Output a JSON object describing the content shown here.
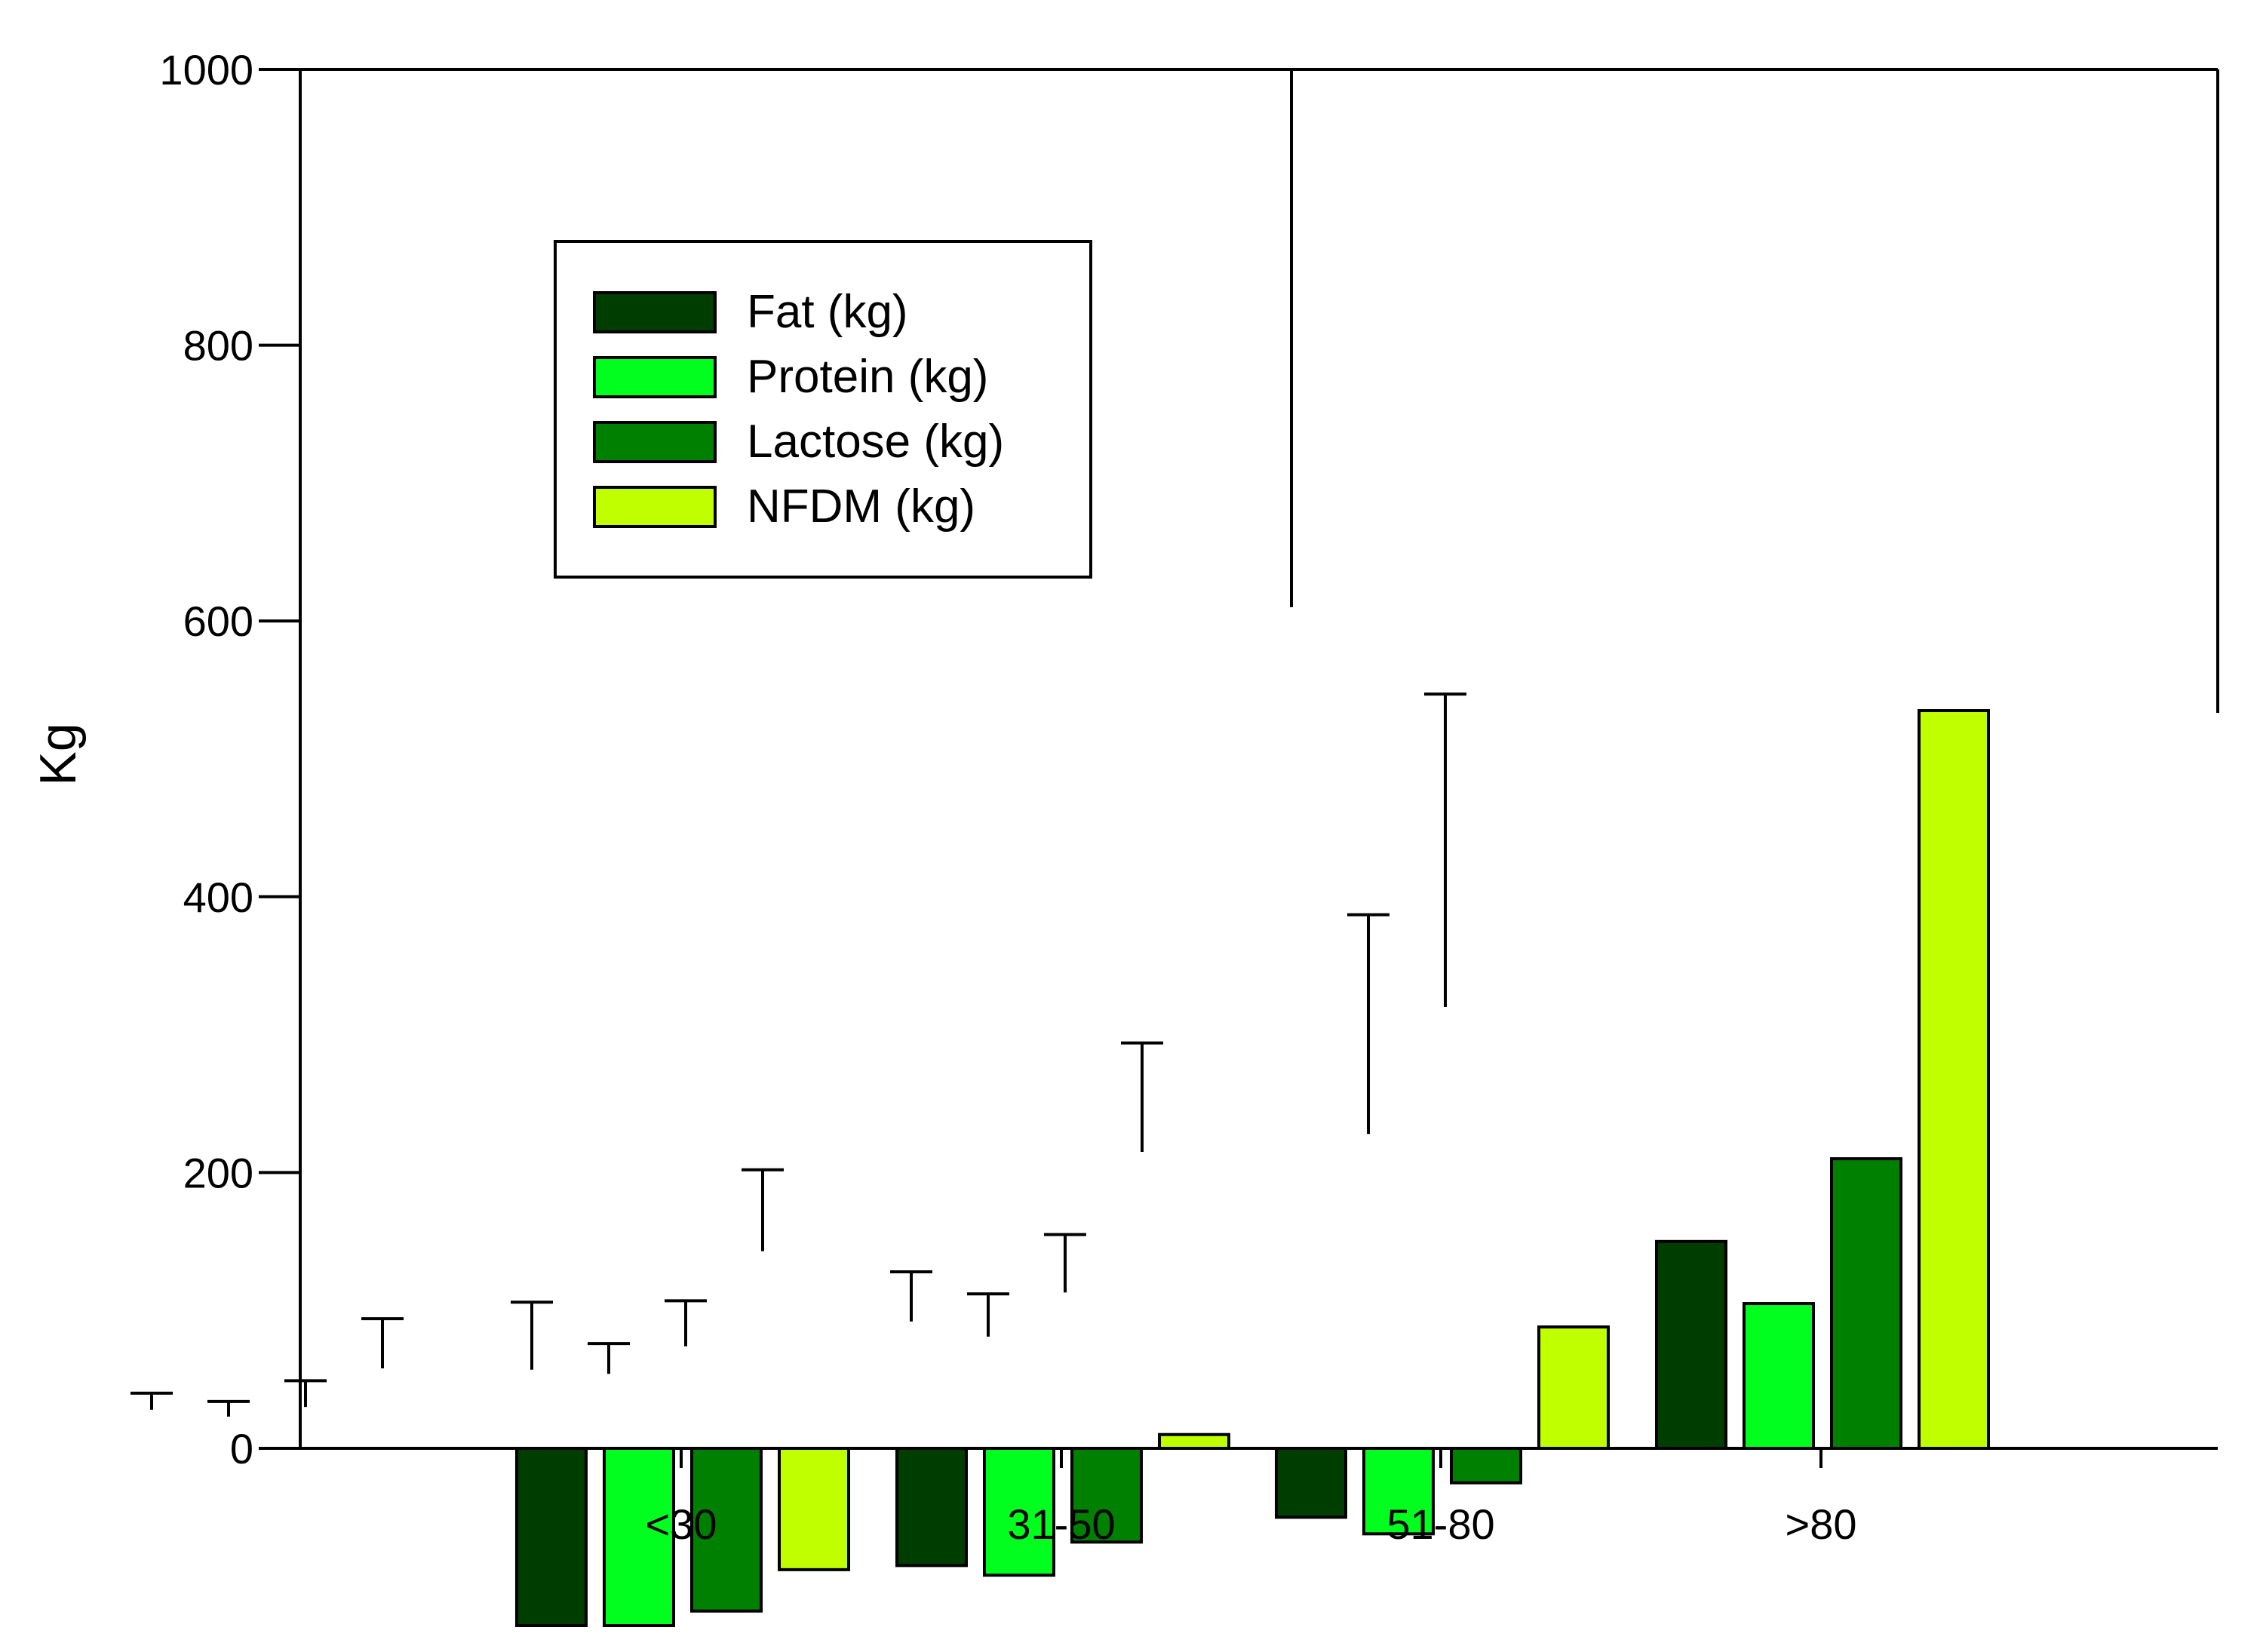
{
  "chart_data": {
    "type": "bar",
    "ylabel": "Kg",
    "ylim": [
      -250,
      1000
    ],
    "yticks": [
      0,
      200,
      400,
      600,
      800,
      1000
    ],
    "ytick_labels": [
      "0",
      "200",
      "400",
      "600",
      "800",
      "1000"
    ],
    "categories": [
      "<30",
      "31-50",
      "51-80",
      ">80"
    ],
    "grid": false,
    "legend_position": "upper-left",
    "series": [
      {
        "name": "Fat (kg)",
        "color": "#003d00",
        "values": [
          -220,
          -85,
          -50,
          150
        ],
        "err_low": [
          28,
          57,
          92,
          610
        ],
        "err_high": [
          40,
          106,
          128,
          1000
        ]
      },
      {
        "name": "Protein (kg)",
        "color": "#00ff1e",
        "values": [
          -195,
          -92,
          -62,
          105
        ],
        "err_low": [
          23,
          54,
          81,
          228
        ],
        "err_high": [
          34,
          76,
          112,
          387
        ]
      },
      {
        "name": "Lactose (kg)",
        "color": "#008000",
        "values": [
          -118,
          -68,
          -25,
          210
        ],
        "err_low": [
          30,
          74,
          113,
          320
        ],
        "err_high": [
          49,
          107,
          155,
          547
        ]
      },
      {
        "name": "NFDM (kg)",
        "color": "#bfff00",
        "values": [
          -88,
          10,
          88,
          535
        ],
        "err_low": [
          58,
          143,
          215,
          1000
        ],
        "err_high": [
          94,
          202,
          294,
          1000
        ]
      }
    ]
  }
}
